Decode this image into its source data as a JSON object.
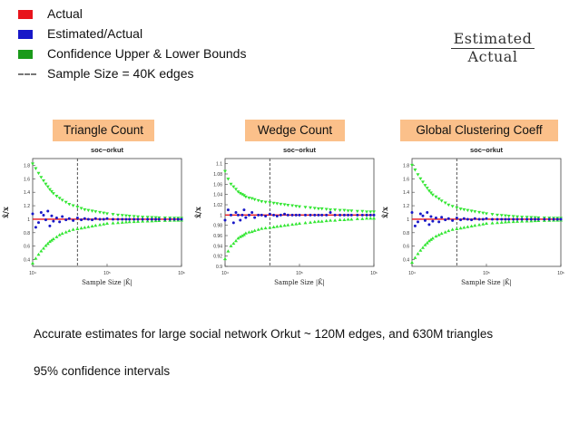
{
  "legend": {
    "items": [
      {
        "label": "Actual",
        "color": "#e8141c",
        "kind": "swatch"
      },
      {
        "label": "Estimated/Actual",
        "color": "#1818c8",
        "kind": "swatch"
      },
      {
        "label": "Confidence Upper & Lower Bounds",
        "color": "#1a9a1a",
        "kind": "swatch"
      },
      {
        "label": "Sample Size = 40K edges",
        "color": "#777777",
        "kind": "dash"
      }
    ]
  },
  "formula": {
    "numerator": "Estimated",
    "denominator": "Actual"
  },
  "notes": {
    "line1": "Accurate estimates for large social network Orkut ~ 120M edges, and 630M triangles",
    "line2": "95% confidence intervals"
  },
  "colors": {
    "actual": "#e8141c",
    "estimate": "#1818c8",
    "bounds": "#33e633",
    "panel_title_bg": "#fbc08a",
    "sample_line": "#555555"
  },
  "chart_data": [
    {
      "type": "scatter",
      "panel_label": "Triangle Count",
      "title": "soc−orkut",
      "xlabel": "Sample Size |K̂|",
      "ylabel": "x̂/x",
      "xscale": "log",
      "xlim": [
        10000,
        1000000
      ],
      "x_ticks": [
        "10⁴",
        "10⁵",
        "10⁶"
      ],
      "ylim": [
        0.3,
        1.9
      ],
      "y_ticks": [
        0.4,
        0.6,
        0.8,
        1,
        1.2,
        1.4,
        1.6,
        1.8
      ],
      "sample_size": 40000,
      "actual": 1,
      "x": [
        10000,
        11000,
        12000,
        13000,
        14000,
        15000,
        16000,
        17000,
        18000,
        19000,
        21000,
        23000,
        25000,
        28000,
        31000,
        35000,
        40000,
        45000,
        50000,
        56000,
        63000,
        70000,
        80000,
        90000,
        100000,
        120000,
        140000,
        160000,
        180000,
        200000,
        230000,
        260000,
        300000,
        350000,
        400000,
        450000,
        500000,
        600000,
        700000,
        800000,
        900000,
        1000000
      ],
      "series": [
        {
          "name": "Estimated/Actual",
          "values": [
            1.08,
            0.88,
            0.95,
            1.1,
            1.06,
            0.99,
            1.12,
            0.9,
            1.05,
            0.97,
            1.02,
            0.96,
            1.04,
            0.99,
            1.01,
            0.98,
            1.02,
            0.99,
            1.01,
            1.0,
            0.99,
            1.01,
            1.0,
            1.0,
            1.01,
            1.0,
            1.0,
            1.0,
            1.0,
            1.0,
            1.0,
            1.0,
            1.0,
            1.0,
            1.0,
            1.0,
            1.0,
            1.0,
            1.0,
            1.0,
            1.0,
            1.0
          ]
        },
        {
          "name": "Upper Bound",
          "values": [
            1.82,
            1.75,
            1.68,
            1.62,
            1.57,
            1.52,
            1.48,
            1.44,
            1.41,
            1.38,
            1.34,
            1.31,
            1.28,
            1.25,
            1.22,
            1.2,
            1.18,
            1.16,
            1.14,
            1.13,
            1.12,
            1.11,
            1.1,
            1.09,
            1.08,
            1.07,
            1.06,
            1.055,
            1.05,
            1.045,
            1.04,
            1.035,
            1.03,
            1.028,
            1.025,
            1.023,
            1.02,
            1.018,
            1.016,
            1.015,
            1.014,
            1.013
          ]
        },
        {
          "name": "Lower Bound",
          "values": [
            0.35,
            0.42,
            0.48,
            0.53,
            0.57,
            0.61,
            0.64,
            0.67,
            0.69,
            0.71,
            0.74,
            0.77,
            0.79,
            0.81,
            0.83,
            0.85,
            0.86,
            0.87,
            0.88,
            0.89,
            0.9,
            0.91,
            0.92,
            0.93,
            0.94,
            0.945,
            0.95,
            0.955,
            0.96,
            0.963,
            0.966,
            0.969,
            0.972,
            0.974,
            0.976,
            0.978,
            0.98,
            0.982,
            0.984,
            0.985,
            0.986,
            0.987
          ]
        }
      ]
    },
    {
      "type": "scatter",
      "panel_label": "Wedge Count",
      "title": "soc−orkut",
      "xlabel": "Sample Size |K̂|",
      "ylabel": "x̂/x",
      "xscale": "log",
      "xlim": [
        10000,
        1000000
      ],
      "x_ticks": [
        "10⁴",
        "10⁵",
        "10⁶"
      ],
      "ylim": [
        0.9,
        1.11
      ],
      "y_ticks": [
        0.9,
        0.92,
        0.94,
        0.96,
        0.98,
        1,
        1.02,
        1.04,
        1.06,
        1.08,
        1.1
      ],
      "sample_size": 40000,
      "actual": 1,
      "x": [
        10000,
        11000,
        12000,
        13000,
        14000,
        15000,
        16000,
        17000,
        18000,
        19000,
        21000,
        23000,
        25000,
        28000,
        31000,
        35000,
        40000,
        45000,
        50000,
        56000,
        63000,
        70000,
        80000,
        90000,
        100000,
        120000,
        140000,
        160000,
        180000,
        200000,
        230000,
        260000,
        300000,
        350000,
        400000,
        450000,
        500000,
        600000,
        700000,
        800000,
        900000,
        1000000
      ],
      "series": [
        {
          "name": "Estimated/Actual",
          "values": [
            0.99,
            1.01,
            1.0,
            0.985,
            1.005,
            1.0,
            0.99,
            1.0,
            1.01,
            0.995,
            1.0,
            1.005,
            0.995,
            1.0,
            1.0,
            0.998,
            1.002,
            1.0,
            0.998,
            1.0,
            1.002,
            1.0,
            1.0,
            1.0,
            1.0,
            1.0,
            1.0,
            1.0,
            1.0,
            1.0,
            1.0,
            1.005,
            1.0,
            1.0,
            1.0,
            1.0,
            1.0,
            1.0,
            1.0,
            1.0,
            1.0,
            1.0
          ]
        },
        {
          "name": "Upper Bound",
          "values": [
            1.085,
            1.07,
            1.06,
            1.055,
            1.05,
            1.045,
            1.042,
            1.04,
            1.038,
            1.035,
            1.033,
            1.032,
            1.03,
            1.028,
            1.026,
            1.025,
            1.024,
            1.023,
            1.022,
            1.021,
            1.02,
            1.019,
            1.018,
            1.017,
            1.016,
            1.015,
            1.014,
            1.013,
            1.012,
            1.012,
            1.011,
            1.01,
            1.01,
            1.009,
            1.009,
            1.008,
            1.008,
            1.007,
            1.007,
            1.006,
            1.006,
            1.006
          ]
        },
        {
          "name": "Lower Bound",
          "values": [
            0.915,
            0.93,
            0.94,
            0.945,
            0.95,
            0.955,
            0.958,
            0.96,
            0.962,
            0.965,
            0.967,
            0.968,
            0.97,
            0.972,
            0.974,
            0.975,
            0.976,
            0.977,
            0.978,
            0.979,
            0.98,
            0.981,
            0.982,
            0.983,
            0.984,
            0.985,
            0.986,
            0.987,
            0.988,
            0.988,
            0.989,
            0.99,
            0.99,
            0.991,
            0.991,
            0.992,
            0.992,
            0.993,
            0.993,
            0.994,
            0.994,
            0.994
          ]
        }
      ]
    },
    {
      "type": "scatter",
      "panel_label": "Global Clustering Coeff",
      "title": "soc−orkut",
      "xlabel": "Sample Size |K̂|",
      "ylabel": "x̂/x",
      "xscale": "log",
      "xlim": [
        10000,
        1000000
      ],
      "x_ticks": [
        "10⁴",
        "10⁵",
        "10⁶"
      ],
      "ylim": [
        0.3,
        1.9
      ],
      "y_ticks": [
        0.4,
        0.6,
        0.8,
        1,
        1.2,
        1.4,
        1.6,
        1.8
      ],
      "sample_size": 40000,
      "actual": 1,
      "x": [
        10000,
        11000,
        12000,
        13000,
        14000,
        15000,
        16000,
        17000,
        18000,
        19000,
        21000,
        23000,
        25000,
        28000,
        31000,
        35000,
        40000,
        45000,
        50000,
        56000,
        63000,
        70000,
        80000,
        90000,
        100000,
        120000,
        140000,
        160000,
        180000,
        200000,
        230000,
        260000,
        300000,
        350000,
        400000,
        450000,
        500000,
        600000,
        700000,
        800000,
        900000,
        1000000
      ],
      "series": [
        {
          "name": "Estimated/Actual",
          "values": [
            1.1,
            0.9,
            0.96,
            1.08,
            1.05,
            0.98,
            1.1,
            0.92,
            1.04,
            0.97,
            1.02,
            0.96,
            1.03,
            0.99,
            1.01,
            0.98,
            1.02,
            0.99,
            1.01,
            1.0,
            0.99,
            1.01,
            1.0,
            1.0,
            1.01,
            1.0,
            1.0,
            1.0,
            1.0,
            1.0,
            1.0,
            1.0,
            1.0,
            1.0,
            1.0,
            1.0,
            1.0,
            1.0,
            1.0,
            1.0,
            1.0,
            1.0
          ]
        },
        {
          "name": "Upper Bound",
          "values": [
            1.8,
            1.73,
            1.66,
            1.6,
            1.55,
            1.5,
            1.46,
            1.42,
            1.39,
            1.36,
            1.33,
            1.3,
            1.27,
            1.24,
            1.21,
            1.19,
            1.17,
            1.15,
            1.14,
            1.13,
            1.12,
            1.11,
            1.1,
            1.09,
            1.08,
            1.07,
            1.06,
            1.055,
            1.05,
            1.045,
            1.04,
            1.035,
            1.03,
            1.028,
            1.025,
            1.023,
            1.02,
            1.018,
            1.016,
            1.015,
            1.014,
            1.013
          ]
        },
        {
          "name": "Lower Bound",
          "values": [
            0.36,
            0.43,
            0.49,
            0.54,
            0.58,
            0.62,
            0.65,
            0.68,
            0.7,
            0.72,
            0.75,
            0.77,
            0.79,
            0.81,
            0.83,
            0.85,
            0.86,
            0.87,
            0.88,
            0.89,
            0.9,
            0.91,
            0.92,
            0.93,
            0.94,
            0.945,
            0.95,
            0.955,
            0.96,
            0.963,
            0.966,
            0.969,
            0.972,
            0.974,
            0.976,
            0.978,
            0.98,
            0.982,
            0.984,
            0.985,
            0.986,
            0.987
          ]
        }
      ]
    }
  ]
}
